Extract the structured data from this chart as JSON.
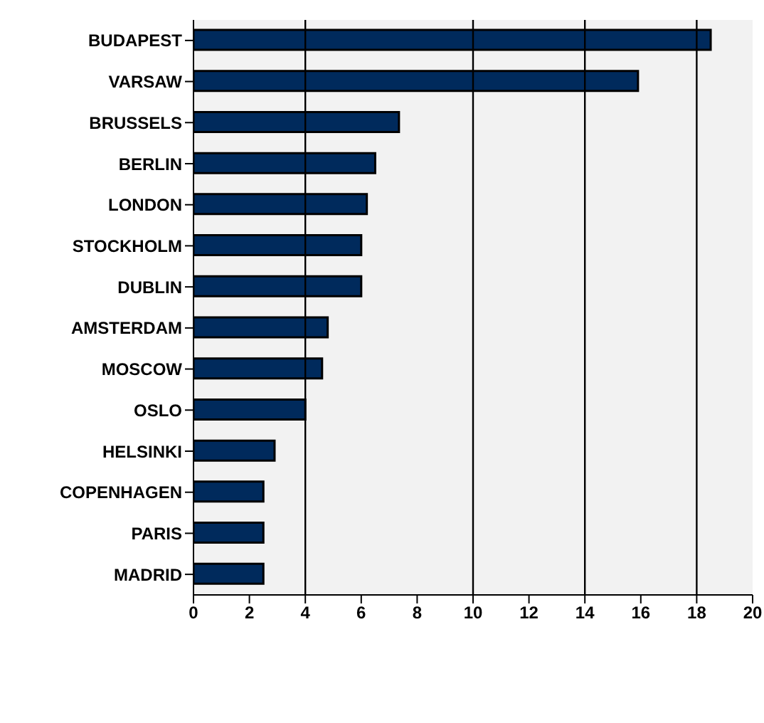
{
  "chart_data": {
    "type": "bar",
    "orientation": "horizontal",
    "categories": [
      "BUDAPEST",
      "VARSAW",
      "BRUSSELS",
      "BERLIN",
      "LONDON",
      "STOCKHOLM",
      "DUBLIN",
      "AMSTERDAM",
      "MOSCOW",
      "OSLO",
      "HELSINKI",
      "COPENHAGEN",
      "PARIS",
      "MADRID"
    ],
    "values": [
      18.5,
      15.9,
      7.35,
      6.5,
      6.2,
      6.0,
      6.0,
      4.8,
      4.6,
      4.0,
      2.9,
      2.5,
      2.5,
      2.5
    ],
    "colors": [
      "#002a5c",
      "#002a5c",
      "#002a5c",
      "#002a5c",
      "#002a5c",
      "#002a5c",
      "#002a5c",
      "#002a5c",
      "#002a5c",
      "#002a5c",
      "#002a5c",
      "#002a5c",
      "#002a5c",
      "#002a5c"
    ],
    "xlim": [
      0,
      20
    ],
    "xticks": [
      0,
      2,
      4,
      6,
      8,
      10,
      12,
      14,
      16,
      18,
      20
    ],
    "ref_lines": [
      {
        "axis": "x",
        "value": 4,
        "color": "#000000"
      },
      {
        "axis": "x",
        "value": 10,
        "color": "#000000"
      },
      {
        "axis": "x",
        "value": 14,
        "color": "#000000"
      },
      {
        "axis": "x",
        "value": 18,
        "color": "#000000"
      }
    ]
  }
}
